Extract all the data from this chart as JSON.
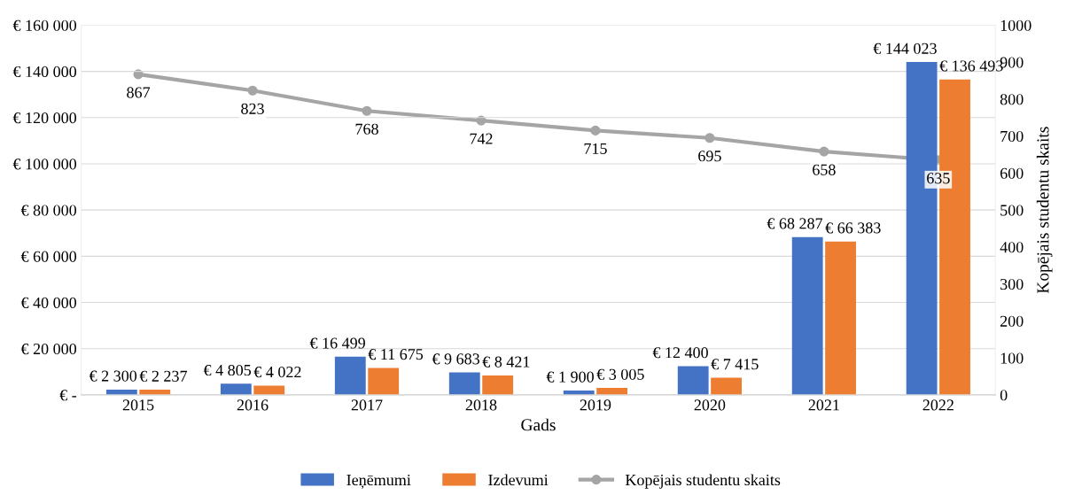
{
  "chart_data": {
    "type": "bar",
    "xlabel": "Gads",
    "y2label": "Kopējais studentu skaits",
    "categories": [
      "2015",
      "2016",
      "2017",
      "2018",
      "2019",
      "2020",
      "2021",
      "2022"
    ],
    "series": [
      {
        "name": "Ieņēmumi",
        "color": "#4472c4",
        "values": [
          2300,
          4805,
          16499,
          9683,
          1900,
          12400,
          68287,
          144023
        ],
        "value_labels": [
          "€ 2 300",
          "€ 4 805",
          "€ 16 499",
          "€ 9 683",
          "€ 1 900",
          "€ 12 400",
          "€ 68 287",
          "€ 144 023"
        ]
      },
      {
        "name": "Izdevumi",
        "color": "#ed7d31",
        "values": [
          2237,
          4022,
          11675,
          8421,
          3005,
          7415,
          66383,
          136493
        ],
        "value_labels": [
          "€ 2 237",
          "€ 4 022",
          "€ 11 675",
          "€ 8 421",
          "€ 3 005",
          "€ 7 415",
          "€ 66 383",
          "€ 136 493"
        ]
      },
      {
        "name": "Kopējais studentu skaits",
        "type": "line",
        "axis": "y2",
        "color": "#a5a5a5",
        "marker": "circle",
        "values": [
          867,
          823,
          768,
          742,
          715,
          695,
          658,
          635
        ],
        "value_labels": [
          "867",
          "823",
          "768",
          "742",
          "715",
          "695",
          "658",
          "635"
        ]
      }
    ],
    "ylim": [
      0,
      160000
    ],
    "yticks": [
      {
        "value": 0,
        "label": "€ -"
      },
      {
        "value": 20000,
        "label": "€ 20 000"
      },
      {
        "value": 40000,
        "label": "€ 40 000"
      },
      {
        "value": 60000,
        "label": "€ 60 000"
      },
      {
        "value": 80000,
        "label": "€ 80 000"
      },
      {
        "value": 100000,
        "label": "€ 100 000"
      },
      {
        "value": 120000,
        "label": "€ 120 000"
      },
      {
        "value": 140000,
        "label": "€ 140 000"
      },
      {
        "value": 160000,
        "label": "€ 160 000"
      }
    ],
    "y2lim": [
      0,
      1000
    ],
    "y2ticks": [
      0,
      100,
      200,
      300,
      400,
      500,
      600,
      700,
      800,
      900,
      1000
    ],
    "grid": "y",
    "legend": "bottom"
  }
}
